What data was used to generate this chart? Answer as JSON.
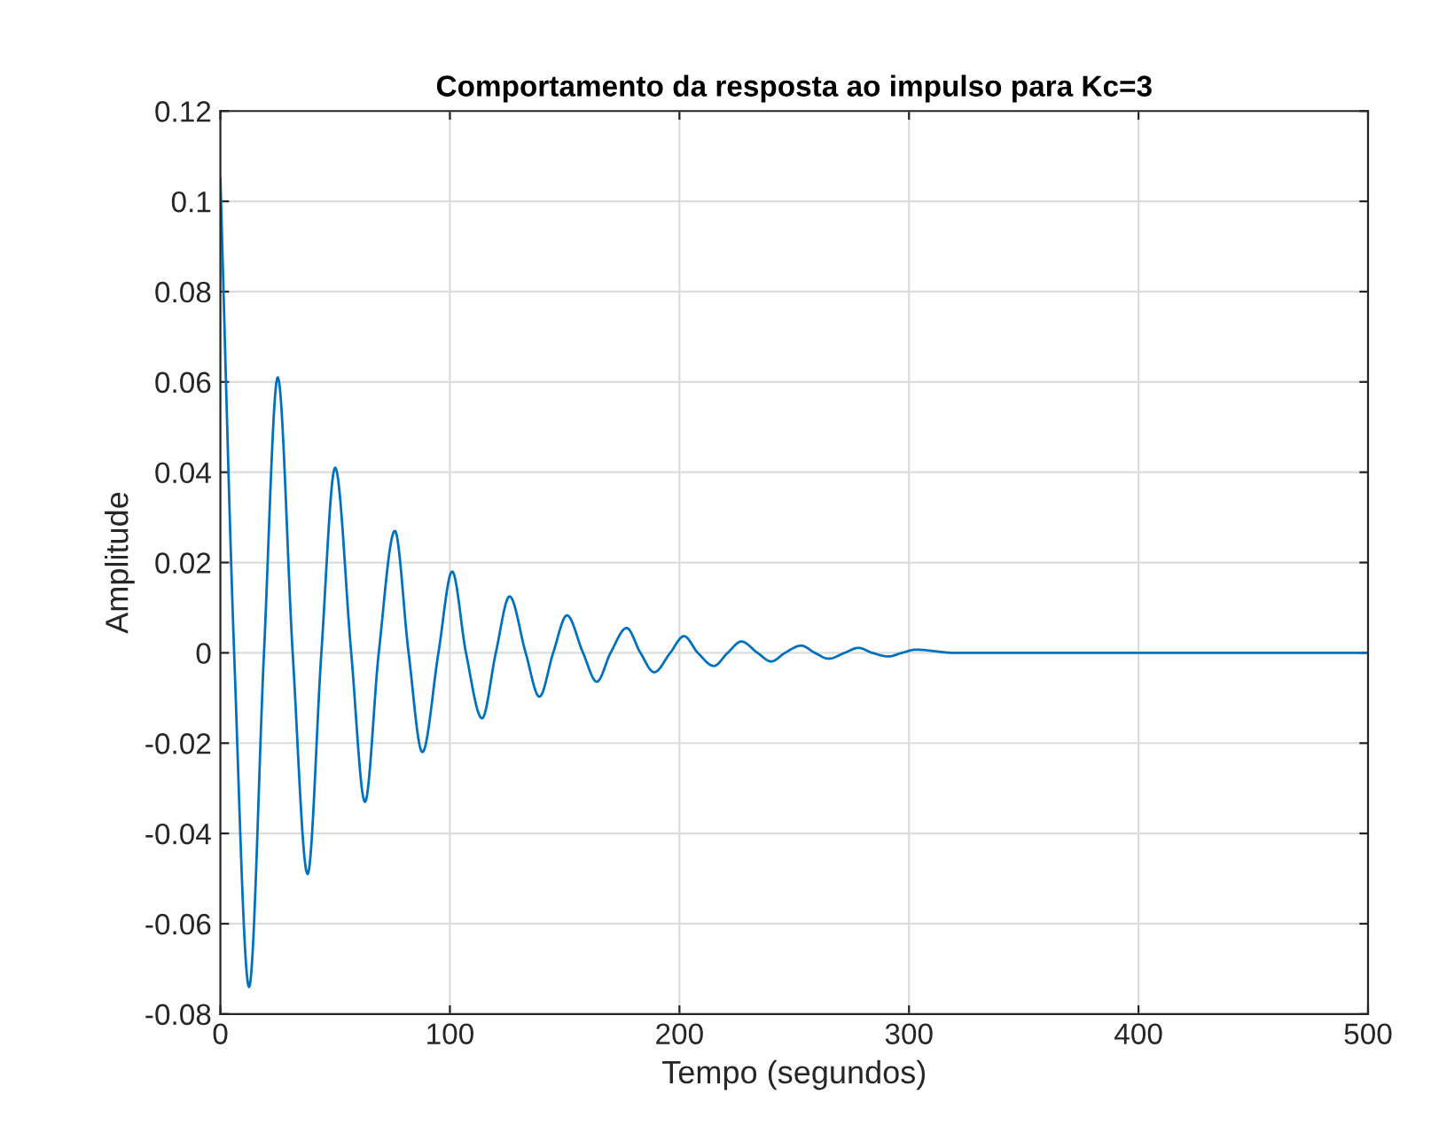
{
  "chart_data": {
    "type": "line",
    "title": "Comportamento da resposta ao impulso para Kc=3",
    "xlabel": "Tempo (segundos)",
    "ylabel": "Amplitude",
    "x": [
      0,
      6,
      12.5,
      19,
      25,
      31.5,
      38,
      44,
      50,
      57,
      63,
      69,
      76,
      82,
      88,
      95,
      101,
      107,
      114,
      120,
      126,
      133,
      139,
      145,
      151,
      158,
      164,
      170,
      177,
      183,
      189,
      196,
      202,
      208,
      215,
      221,
      227,
      234,
      240,
      246,
      253,
      259,
      265,
      272,
      278,
      284,
      291,
      297,
      303,
      320,
      500
    ],
    "series": [
      {
        "color": "#0072bd",
        "values": [
          0.105,
          0,
          -0.074,
          0,
          0.061,
          0,
          -0.049,
          0,
          0.041,
          0,
          -0.033,
          0,
          0.027,
          0,
          -0.022,
          0,
          0.018,
          0,
          -0.0145,
          0,
          0.0125,
          0,
          -0.0097,
          0,
          0.0083,
          0,
          -0.0064,
          0,
          0.0055,
          0,
          -0.0043,
          0,
          0.0037,
          0,
          -0.0029,
          0,
          0.0025,
          0,
          -0.0019,
          0,
          0.0016,
          0,
          -0.0013,
          0,
          0.0011,
          0,
          -0.0008,
          0,
          0.0007,
          0,
          0
        ]
      }
    ],
    "xlim": [
      0,
      500
    ],
    "ylim": [
      -0.08,
      0.12
    ],
    "xticks": [
      0,
      100,
      200,
      300,
      400,
      500
    ],
    "yticks": [
      -0.08,
      -0.06,
      -0.04,
      -0.02,
      0,
      0.02,
      0.04,
      0.06,
      0.08,
      0.1,
      0.12
    ],
    "grid": true,
    "legend": false,
    "marker": "none",
    "line_style": "solid"
  }
}
